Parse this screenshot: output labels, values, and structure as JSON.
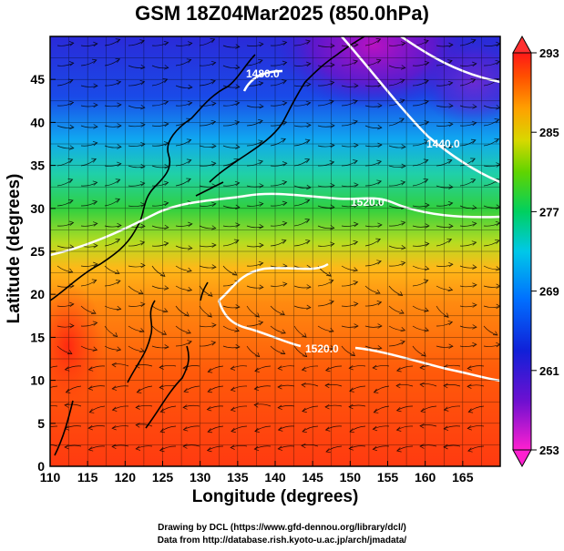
{
  "title": "GSM 18Z04Mar2025 (850.0hPa)",
  "x_axis": {
    "label": "Longitude (degrees)",
    "ticks": [
      "110",
      "115",
      "120",
      "125",
      "130",
      "135",
      "140",
      "145",
      "150",
      "155",
      "160",
      "165"
    ],
    "range": [
      110,
      170
    ]
  },
  "y_axis": {
    "label": "Latitude  (degrees)",
    "ticks": [
      "0",
      "5",
      "10",
      "15",
      "20",
      "25",
      "30",
      "35",
      "40",
      "45"
    ],
    "range": [
      0,
      50
    ]
  },
  "colorbar": {
    "labels": [
      "293",
      "285",
      "277",
      "269",
      "261",
      "253"
    ],
    "range": [
      253,
      293
    ],
    "colors": [
      "#ff1f1f",
      "#ff6a00",
      "#ffb000",
      "#c8d800",
      "#39d400",
      "#00d0b8",
      "#0090ff",
      "#1030e0",
      "#7000d0",
      "#ff30ff"
    ]
  },
  "contour_labels": [
    "1480.0",
    "1440.0",
    "1520.0",
    "1520.0"
  ],
  "credits": {
    "line1": "Drawing by DCL (https://www.gfd-dennou.org/library/dcl/)",
    "line2": "Data from http://database.rish.kyoto-u.ac.jp/arch/jmadata/"
  }
}
